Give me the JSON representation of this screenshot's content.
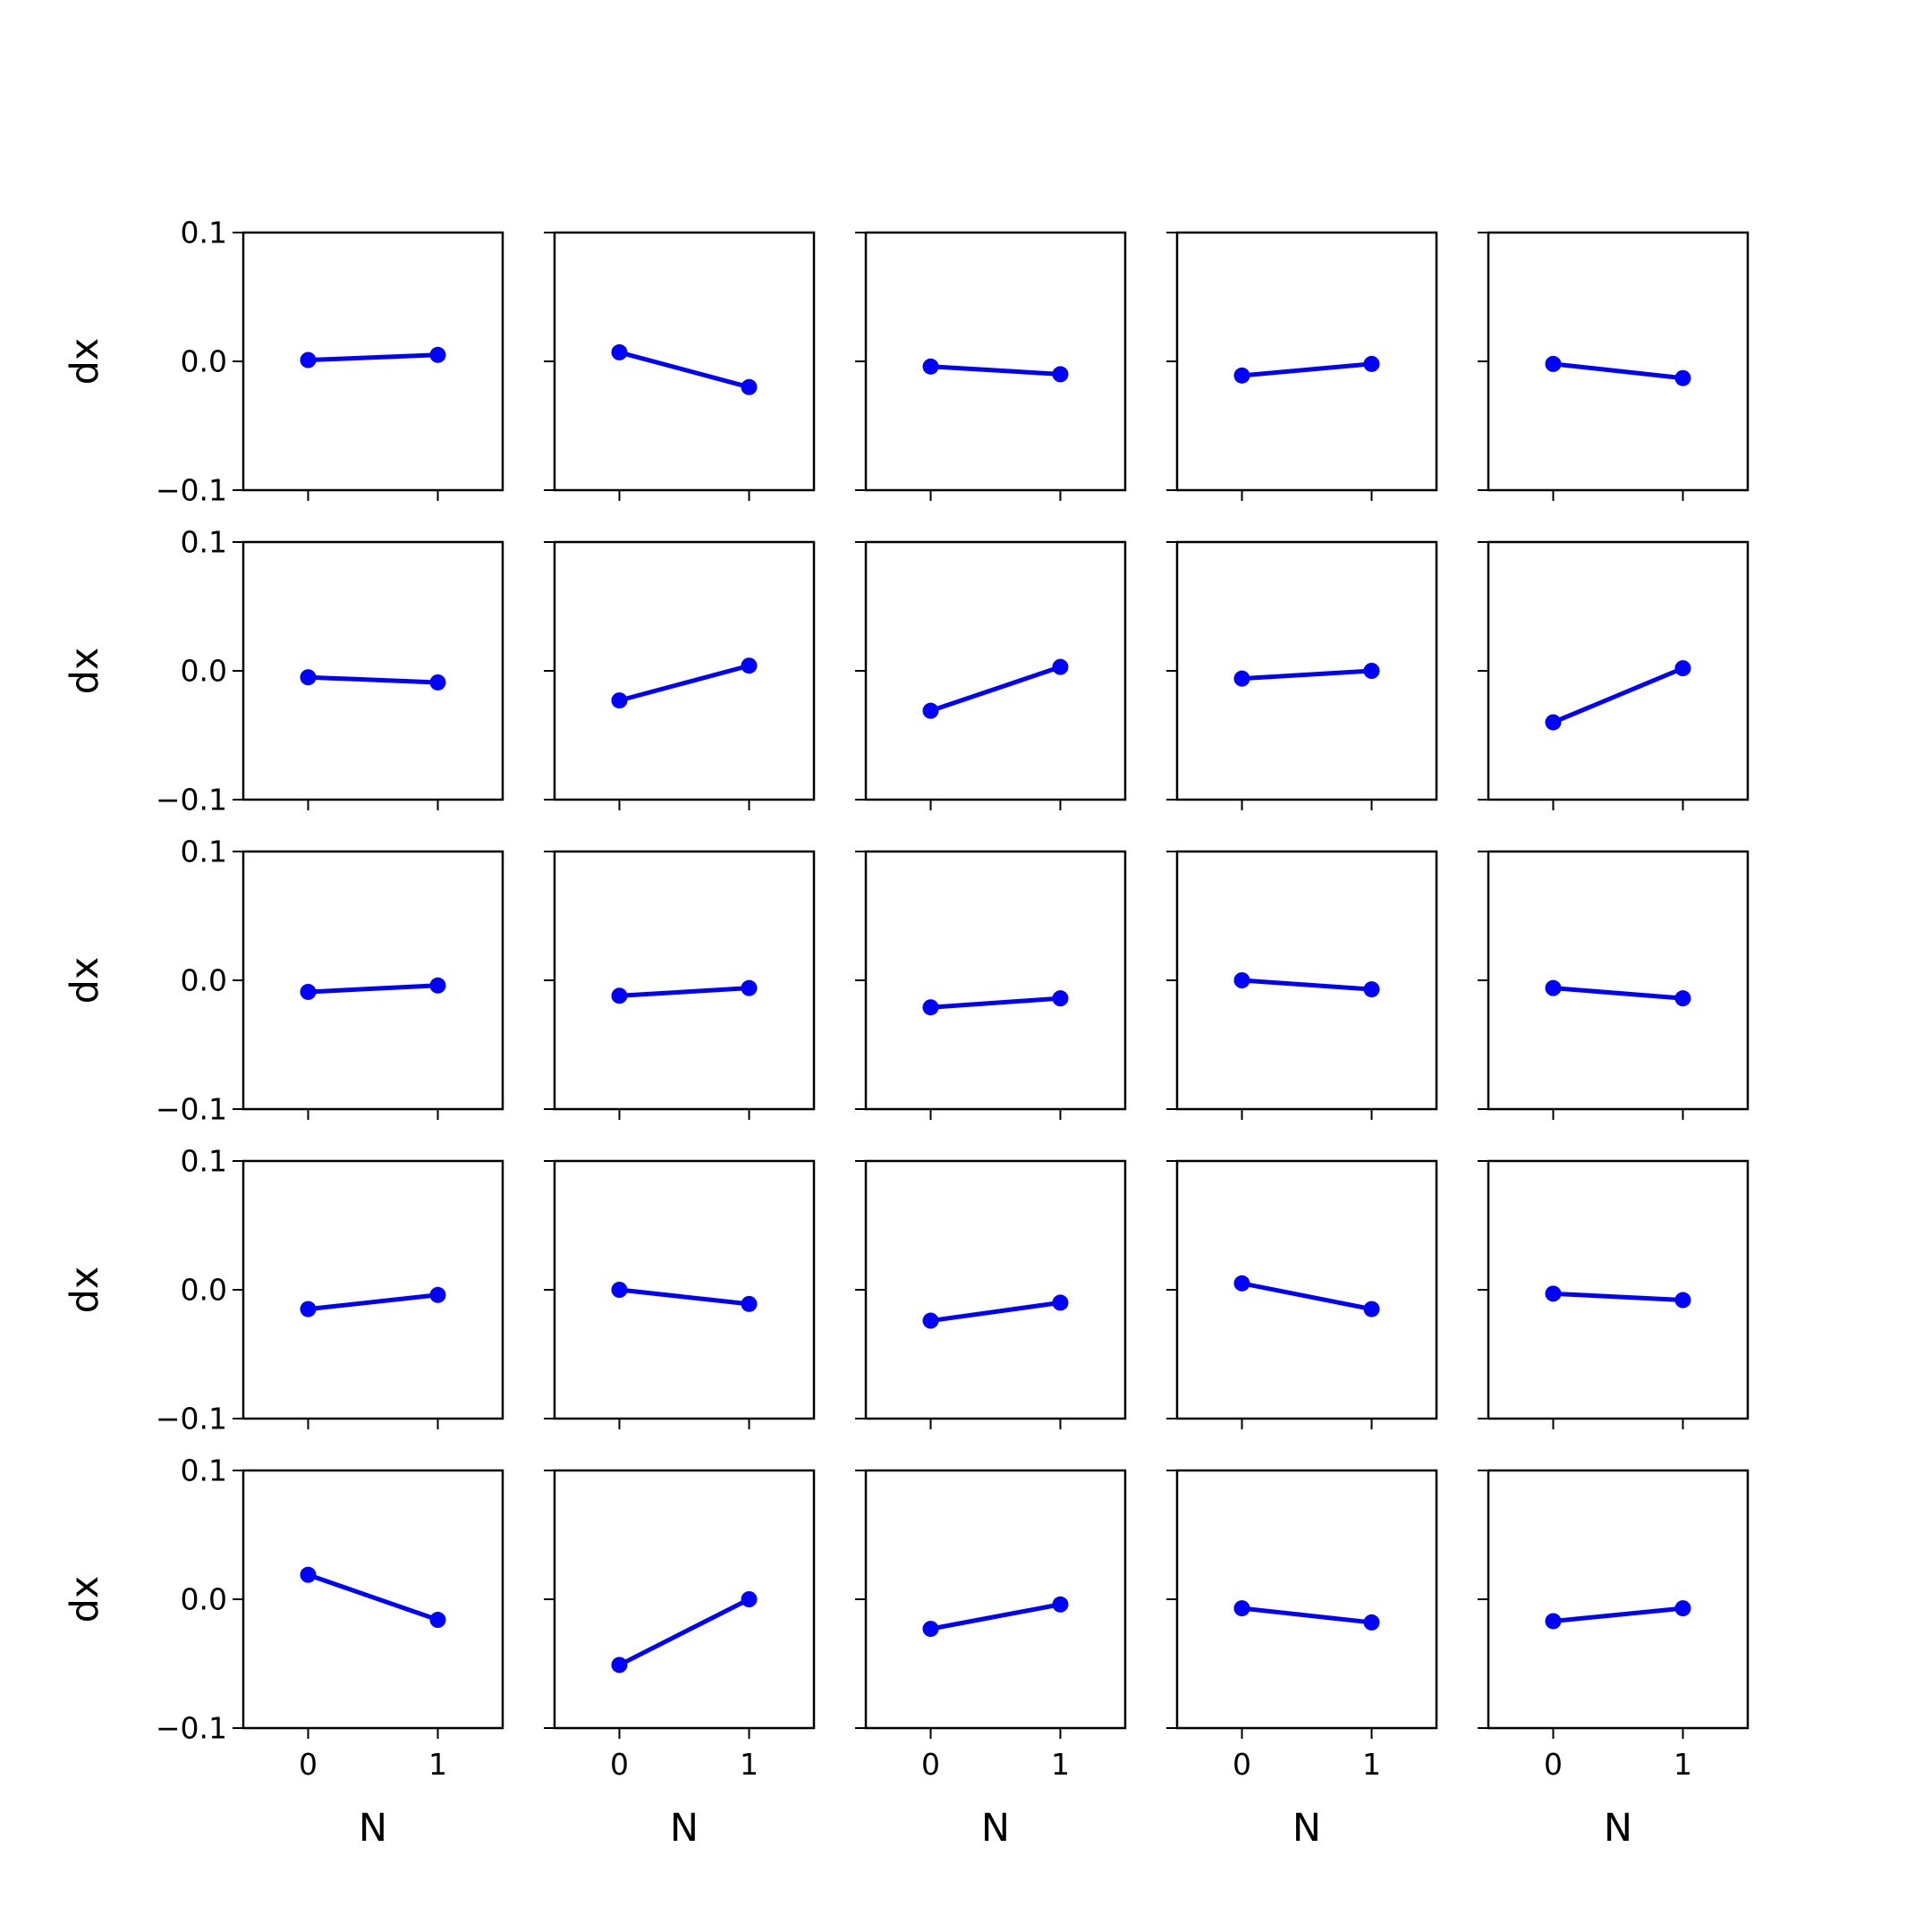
{
  "colors": {
    "series": "#0000ff",
    "axes": "#000000",
    "background": "#ffffff"
  },
  "chart_data": {
    "type": "line",
    "layout": "5x5 grid of small-multiple subplots, shared axes",
    "x_ticks": [
      "0",
      "1"
    ],
    "y_ticks": [
      "−0.1",
      "0.0",
      "0.1"
    ],
    "xlabel": "N",
    "ylabel": "dx",
    "xlim": [
      -0.5,
      1.5
    ],
    "ylim": [
      -0.1,
      0.1
    ],
    "grid": false,
    "legend": false,
    "markers": true,
    "x": [
      0,
      1
    ],
    "panels": [
      {
        "row": 1,
        "col": 1,
        "values": [
          0.001,
          0.005
        ]
      },
      {
        "row": 1,
        "col": 2,
        "values": [
          0.007,
          -0.02
        ]
      },
      {
        "row": 1,
        "col": 3,
        "values": [
          -0.004,
          -0.01
        ]
      },
      {
        "row": 1,
        "col": 4,
        "values": [
          -0.011,
          -0.002
        ]
      },
      {
        "row": 1,
        "col": 5,
        "values": [
          -0.002,
          -0.013
        ]
      },
      {
        "row": 2,
        "col": 1,
        "values": [
          -0.005,
          -0.009
        ]
      },
      {
        "row": 2,
        "col": 2,
        "values": [
          -0.023,
          0.004
        ]
      },
      {
        "row": 2,
        "col": 3,
        "values": [
          -0.031,
          0.003
        ]
      },
      {
        "row": 2,
        "col": 4,
        "values": [
          -0.006,
          0.0
        ]
      },
      {
        "row": 2,
        "col": 5,
        "values": [
          -0.04,
          0.002
        ]
      },
      {
        "row": 3,
        "col": 1,
        "values": [
          -0.009,
          -0.004
        ]
      },
      {
        "row": 3,
        "col": 2,
        "values": [
          -0.012,
          -0.006
        ]
      },
      {
        "row": 3,
        "col": 3,
        "values": [
          -0.021,
          -0.014
        ]
      },
      {
        "row": 3,
        "col": 4,
        "values": [
          0.0,
          -0.007
        ]
      },
      {
        "row": 3,
        "col": 5,
        "values": [
          -0.006,
          -0.014
        ]
      },
      {
        "row": 4,
        "col": 1,
        "values": [
          -0.015,
          -0.004
        ]
      },
      {
        "row": 4,
        "col": 2,
        "values": [
          0.0,
          -0.011
        ]
      },
      {
        "row": 4,
        "col": 3,
        "values": [
          -0.024,
          -0.01
        ]
      },
      {
        "row": 4,
        "col": 4,
        "values": [
          0.005,
          -0.015
        ]
      },
      {
        "row": 4,
        "col": 5,
        "values": [
          -0.003,
          -0.008
        ]
      },
      {
        "row": 5,
        "col": 1,
        "values": [
          0.019,
          -0.016
        ]
      },
      {
        "row": 5,
        "col": 2,
        "values": [
          -0.051,
          0.0
        ]
      },
      {
        "row": 5,
        "col": 3,
        "values": [
          -0.023,
          -0.004
        ]
      },
      {
        "row": 5,
        "col": 4,
        "values": [
          -0.007,
          -0.018
        ]
      },
      {
        "row": 5,
        "col": 5,
        "values": [
          -0.017,
          -0.007
        ]
      }
    ]
  }
}
